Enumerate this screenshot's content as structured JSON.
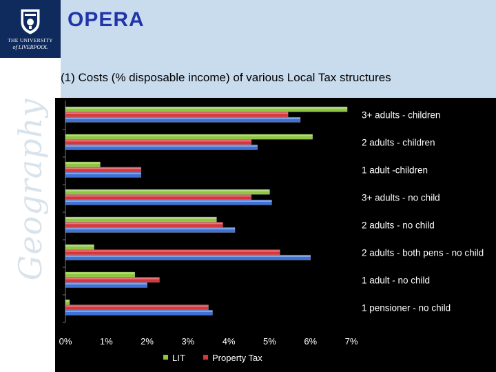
{
  "header": {
    "title": "OPERA"
  },
  "branding": {
    "university_line1": "THE UNIVERSITY",
    "university_line2": "of LIVERPOOL",
    "sidebar_word": "Geography"
  },
  "icons": {
    "logo": "university-crest-icon"
  },
  "colors": {
    "lit": "#8fc641",
    "property_tax": "#d9343b",
    "third_series": "#3f72d6",
    "chart_background": "#000000",
    "title": "#1f35a8"
  },
  "chart_data": {
    "type": "bar",
    "orientation": "horizontal",
    "title": "(1) Costs (% disposable income) of various Local Tax structures",
    "categories": [
      "3+ adults - children",
      "2 adults - children",
      "1 adult -children",
      "3+ adults - no child",
      "2 adults - no child",
      "2 adults - both pens - no child",
      "1 adult - no child",
      "1 pensioner - no child"
    ],
    "series": [
      {
        "name": "LIT",
        "values": [
          6.9,
          6.05,
          0.85,
          5.0,
          3.7,
          0.7,
          1.7,
          0.1
        ]
      },
      {
        "name": "Property Tax",
        "values": [
          5.45,
          4.55,
          1.85,
          4.55,
          3.85,
          5.25,
          2.3,
          3.5
        ]
      },
      {
        "name": "",
        "values": [
          5.75,
          4.7,
          1.85,
          5.05,
          4.15,
          6.0,
          2.0,
          3.6
        ]
      }
    ],
    "xticks": [
      "0%",
      "1%",
      "2%",
      "3%",
      "4%",
      "5%",
      "6%",
      "7%"
    ],
    "xlim": [
      0,
      7
    ],
    "legend_position": "bottom",
    "grid": false
  }
}
